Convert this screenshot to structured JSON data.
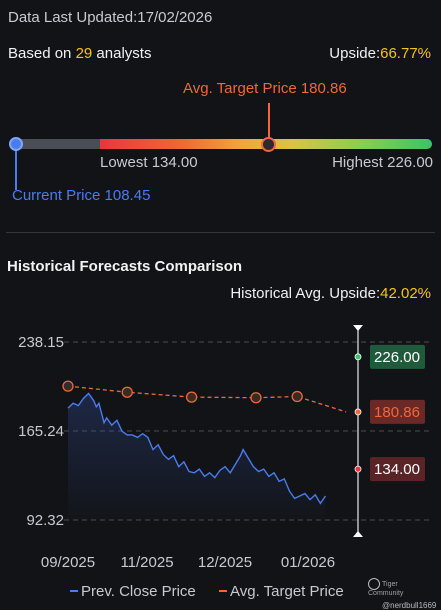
{
  "header": {
    "updated_prefix": "Data Last Updated:",
    "updated_date": "17/02/2026",
    "analysts_prefix": "Based on ",
    "analysts_count": "29",
    "analysts_suffix": " analysts",
    "upside_prefix": "Upside:",
    "upside_value": "66.77%"
  },
  "range": {
    "avg_target_label": "Avg. Target Price 180.86",
    "lowest_label": "Lowest 134.00",
    "highest_label": "Highest 226.00",
    "current_label": "Current Price 108.45",
    "current_price": 108.45,
    "lowest": 134.0,
    "highest": 226.0,
    "avg_target": 180.86
  },
  "history": {
    "title": "Historical Forecasts Comparison",
    "upside_prefix": "Historical Avg. Upside:",
    "upside_value": "42.02%"
  },
  "legend": {
    "prev_close": "Prev. Close Price",
    "avg_target": "Avg. Target Price"
  },
  "watermark": {
    "brand": "Tiger Community",
    "user": "@nerdbull1669"
  },
  "colors": {
    "blue": "#4a7cf0",
    "orange": "#f0683a",
    "yellow": "#f5c518",
    "green_badge": "#1f5a3b",
    "red_badge": "#6a2826"
  },
  "chart_data": {
    "type": "line",
    "y_ticks": [
      "238.15",
      "165.24",
      "92.32"
    ],
    "ylim": [
      92.32,
      238.15
    ],
    "x_ticks": [
      "09/2025",
      "11/2025",
      "12/2025",
      "01/2026"
    ],
    "x_tick_positions": [
      0.0,
      0.25,
      0.5,
      0.75
    ],
    "grid": true,
    "legend_position": "bottom",
    "series": [
      {
        "name": "Prev. Close Price",
        "color": "#4a7cf0",
        "style": "solid",
        "points": [
          [
            0.0,
            184
          ],
          [
            0.02,
            188
          ],
          [
            0.04,
            186
          ],
          [
            0.06,
            192
          ],
          [
            0.08,
            196
          ],
          [
            0.1,
            190
          ],
          [
            0.11,
            185
          ],
          [
            0.12,
            188
          ],
          [
            0.14,
            172
          ],
          [
            0.15,
            176
          ],
          [
            0.17,
            170
          ],
          [
            0.19,
            174
          ],
          [
            0.21,
            165
          ],
          [
            0.23,
            162
          ],
          [
            0.25,
            162
          ],
          [
            0.27,
            160
          ],
          [
            0.29,
            163
          ],
          [
            0.31,
            160
          ],
          [
            0.33,
            150
          ],
          [
            0.35,
            154
          ],
          [
            0.37,
            146
          ],
          [
            0.39,
            142
          ],
          [
            0.41,
            145
          ],
          [
            0.43,
            136
          ],
          [
            0.45,
            140
          ],
          [
            0.47,
            132
          ],
          [
            0.49,
            131
          ],
          [
            0.51,
            134
          ],
          [
            0.53,
            128
          ],
          [
            0.55,
            131
          ],
          [
            0.57,
            127
          ],
          [
            0.59,
            133
          ],
          [
            0.61,
            136
          ],
          [
            0.63,
            131
          ],
          [
            0.65,
            138
          ],
          [
            0.67,
            145
          ],
          [
            0.68,
            150
          ],
          [
            0.7,
            143
          ],
          [
            0.72,
            136
          ],
          [
            0.74,
            132
          ],
          [
            0.76,
            134
          ],
          [
            0.78,
            128
          ],
          [
            0.8,
            131
          ],
          [
            0.82,
            124
          ],
          [
            0.84,
            126
          ],
          [
            0.86,
            116
          ],
          [
            0.88,
            110
          ],
          [
            0.9,
            112
          ],
          [
            0.92,
            114
          ],
          [
            0.94,
            109
          ],
          [
            0.96,
            113
          ],
          [
            0.98,
            106
          ],
          [
            1.0,
            112
          ]
        ]
      },
      {
        "name": "Avg. Target Price",
        "color": "#f0683a",
        "style": "dashed",
        "points": [
          [
            0.0,
            202
          ],
          [
            0.23,
            197
          ],
          [
            0.48,
            193
          ],
          [
            0.73,
            192.5
          ],
          [
            0.89,
            193.5
          ],
          [
            1.08,
            180.86
          ]
        ]
      }
    ],
    "forecast_markers": [
      {
        "label": "226.00",
        "value": 226.0,
        "color": "#3bc465",
        "badge": "#1f5a3b"
      },
      {
        "label": "180.86",
        "value": 180.86,
        "color": "#f0683a",
        "badge": "#6a2826"
      },
      {
        "label": "134.00",
        "value": 134.0,
        "color": "#e8363f",
        "badge": "#5a2426"
      }
    ]
  }
}
